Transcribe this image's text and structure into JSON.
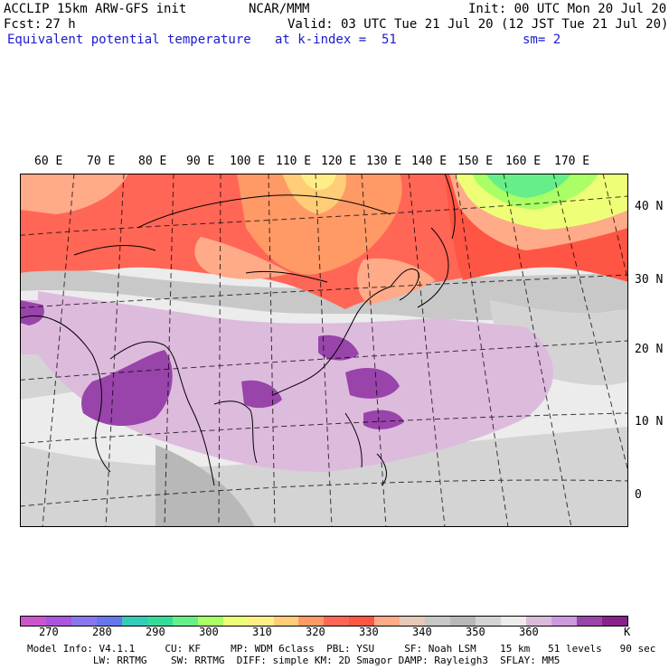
{
  "header": {
    "model_title": "ACCLIP 15km ARW-GFS init",
    "org": "NCAR/MMM",
    "init": "Init: 00 UTC Mon 20 Jul 20",
    "fcst_label": "Fcst:",
    "fcst_value": "27 h",
    "valid": "Valid: 03 UTC Tue 21 Jul 20 (12 JST Tue 21 Jul 20)",
    "field_name": "Equivalent potential temperature",
    "level": "at k-index =  51",
    "smoothing": "sm= 2"
  },
  "map": {
    "longitude_labels": [
      "60 E",
      "70 E",
      "80 E",
      "90 E",
      "100 E",
      "110 E",
      "120 E",
      "130 E",
      "140 E",
      "150 E",
      "160 E",
      "170 E"
    ],
    "latitude_labels": [
      "40 N",
      "30 N",
      "20 N",
      "10 N",
      "0"
    ]
  },
  "colorbar": {
    "colors": [
      "#cc55cc",
      "#aa55dd",
      "#8877ee",
      "#6677ee",
      "#33ccbb",
      "#33dd99",
      "#66ee88",
      "#aaff66",
      "#eeff77",
      "#ffee88",
      "#ffcc77",
      "#ff9966",
      "#ff6655",
      "#ff5544",
      "#ffaa88",
      "#e8c8b8",
      "#c8c8c8",
      "#b8b8b8",
      "#d4d4d4",
      "#ececec",
      "#ddbbdd",
      "#cc99dd",
      "#9944aa",
      "#882288"
    ],
    "tick_labels": [
      "270",
      "280",
      "290",
      "300",
      "310",
      "320",
      "330",
      "340",
      "350",
      "360",
      "K"
    ]
  },
  "footer": {
    "line1": "Model Info: V4.1.1     CU: KF     MP: WDM 6class  PBL: YSU     SF: Noah LSM    15 km   51 levels   90 sec",
    "line2": "           LW: RRTMG    SW: RRTMG  DIFF: simple KM: 2D Smagor DAMP: Rayleigh3  SFLAY: MM5"
  }
}
